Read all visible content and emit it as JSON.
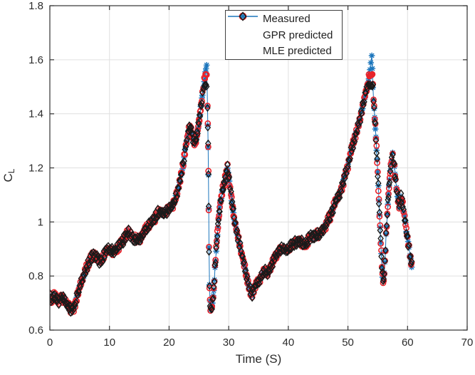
{
  "figure": {
    "background": "#ffffff"
  },
  "axes": {
    "xlabel": "Time (S)",
    "ylabel_main": "C",
    "ylabel_sub": "L",
    "xticks": [
      "0",
      "10",
      "20",
      "30",
      "40",
      "50",
      "60",
      "70"
    ],
    "yticks": [
      "0.6",
      "0.8",
      "1",
      "1.2",
      "1.4",
      "1.6",
      "1.8"
    ],
    "grid": true,
    "grid_color": "#e0e0e0",
    "box_color": "#333333",
    "tick_label_color": "#2b2b2b"
  },
  "legend": {
    "position": "top-left-inside",
    "border_color": "#404040",
    "items": [
      {
        "label": "Measured",
        "marker": "asterisk-line",
        "color": "#1b75bc"
      },
      {
        "label": "GPR predicted",
        "marker": "circle",
        "color": "#e8232a"
      },
      {
        "label": "MLE predicted",
        "marker": "diamond",
        "color": "#1a1a1a"
      }
    ]
  },
  "chart_data": {
    "type": "scatter",
    "title": "",
    "xlabel": "Time (S)",
    "ylabel": "C_L",
    "xlim": [
      0,
      70
    ],
    "ylim": [
      0.6,
      1.8
    ],
    "grid": true,
    "legend_position": "top-left-inside",
    "x": [
      0,
      0.3,
      0.7,
      1.0,
      1.5,
      2.0,
      2.5,
      3.0,
      3.5,
      4.0,
      4.5,
      5.0,
      5.5,
      6.0,
      6.5,
      7.0,
      7.3,
      7.8,
      8.3,
      8.8,
      9.3,
      9.8,
      10.3,
      10.8,
      11.3,
      11.8,
      12.3,
      12.8,
      13.2,
      13.6,
      14.0,
      14.5,
      15.0,
      15.5,
      16.0,
      16.5,
      17.0,
      17.5,
      18.0,
      18.5,
      19.0,
      19.5,
      20.0,
      20.5,
      21.0,
      21.5,
      22.0,
      22.4,
      22.8,
      23.2,
      23.5,
      23.8,
      24.1,
      24.4,
      24.7,
      25.0,
      25.3,
      25.6,
      25.9,
      26.1,
      26.3,
      26.45,
      26.5,
      26.55,
      26.6,
      26.65,
      26.7,
      26.78,
      26.86,
      26.95,
      27.1,
      27.3,
      27.5,
      27.7,
      28.0,
      28.3,
      28.6,
      28.9,
      29.2,
      29.5,
      29.8,
      30.1,
      30.4,
      30.7,
      31.0,
      31.4,
      31.8,
      32.2,
      32.6,
      33.0,
      33.4,
      33.8,
      34.2,
      34.6,
      35.0,
      35.5,
      36.0,
      36.5,
      37.0,
      37.5,
      38.0,
      38.5,
      39.0,
      39.5,
      40.0,
      40.5,
      41.0,
      41.5,
      42.0,
      42.5,
      43.0,
      43.5,
      44.0,
      44.5,
      45.0,
      45.5,
      46.0,
      46.5,
      47.0,
      47.5,
      48.0,
      48.5,
      49.0,
      49.5,
      50.0,
      50.5,
      51.0,
      51.4,
      51.8,
      52.2,
      52.6,
      53.0,
      53.4,
      53.7,
      54.0,
      54.2,
      54.4,
      54.6,
      54.8,
      55.0,
      55.2,
      55.4,
      55.6,
      55.8,
      56.0,
      56.2,
      56.4,
      56.6,
      56.8,
      57.0,
      57.2,
      57.5,
      57.8,
      58.0,
      58.3,
      58.6,
      58.9,
      59.2,
      59.5,
      59.8,
      60.1,
      60.4,
      60.7
    ],
    "series": [
      {
        "name": "Measured",
        "marker": "asterisk",
        "color": "#1b75bc",
        "line": true,
        "values": [
          0.72,
          0.71,
          0.73,
          0.72,
          0.71,
          0.72,
          0.71,
          0.69,
          0.675,
          0.68,
          0.72,
          0.76,
          0.79,
          0.82,
          0.85,
          0.87,
          0.88,
          0.87,
          0.855,
          0.86,
          0.89,
          0.9,
          0.895,
          0.89,
          0.9,
          0.92,
          0.93,
          0.95,
          0.965,
          0.95,
          0.94,
          0.935,
          0.93,
          0.95,
          0.97,
          0.985,
          1.0,
          1.01,
          1.03,
          1.04,
          1.03,
          1.04,
          1.05,
          1.06,
          1.08,
          1.12,
          1.17,
          1.22,
          1.28,
          1.33,
          1.35,
          1.33,
          1.3,
          1.29,
          1.32,
          1.37,
          1.42,
          1.47,
          1.52,
          1.55,
          1.58,
          1.43,
          1.36,
          1.28,
          1.18,
          1.05,
          0.9,
          0.76,
          0.7,
          0.675,
          0.68,
          0.7,
          0.75,
          0.83,
          0.93,
          1.01,
          1.07,
          1.11,
          1.14,
          1.17,
          1.2,
          1.15,
          1.1,
          1.05,
          1.0,
          0.96,
          0.92,
          0.88,
          0.84,
          0.8,
          0.76,
          0.73,
          0.75,
          0.77,
          0.78,
          0.8,
          0.82,
          0.81,
          0.83,
          0.86,
          0.88,
          0.9,
          0.9,
          0.895,
          0.9,
          0.91,
          0.92,
          0.925,
          0.93,
          0.915,
          0.92,
          0.94,
          0.95,
          0.95,
          0.955,
          0.96,
          0.975,
          1.0,
          1.02,
          1.05,
          1.08,
          1.1,
          1.13,
          1.17,
          1.21,
          1.26,
          1.3,
          1.33,
          1.36,
          1.4,
          1.44,
          1.48,
          1.52,
          1.56,
          1.62,
          1.5,
          1.42,
          1.35,
          1.27,
          1.18,
          1.08,
          0.98,
          0.88,
          0.8,
          0.78,
          0.85,
          0.95,
          1.03,
          1.1,
          1.16,
          1.21,
          1.25,
          1.2,
          1.15,
          1.1,
          1.06,
          1.09,
          1.07,
          1.02,
          0.97,
          0.92,
          0.88,
          0.84
        ]
      },
      {
        "name": "GPR predicted",
        "marker": "circle",
        "color": "#e8232a",
        "line": false,
        "base": "Measured",
        "delta_cycle": [
          0.008,
          -0.006,
          0.01,
          -0.009,
          0.005,
          -0.01,
          0.007,
          -0.004
        ],
        "clip_max": 1.55
      },
      {
        "name": "MLE predicted",
        "marker": "diamond",
        "color": "#1a1a1a",
        "line": false,
        "base": "Measured",
        "delta_cycle": [
          -0.01,
          0.012,
          -0.007,
          0.009,
          -0.012,
          0.006,
          -0.009,
          0.011,
          -0.005
        ],
        "clip_max": 1.51
      }
    ],
    "render": {
      "sample_dt": 0.12,
      "noise": [
        0.008,
        0.006,
        0.006
      ],
      "seeds": [
        7,
        19,
        41
      ]
    }
  }
}
